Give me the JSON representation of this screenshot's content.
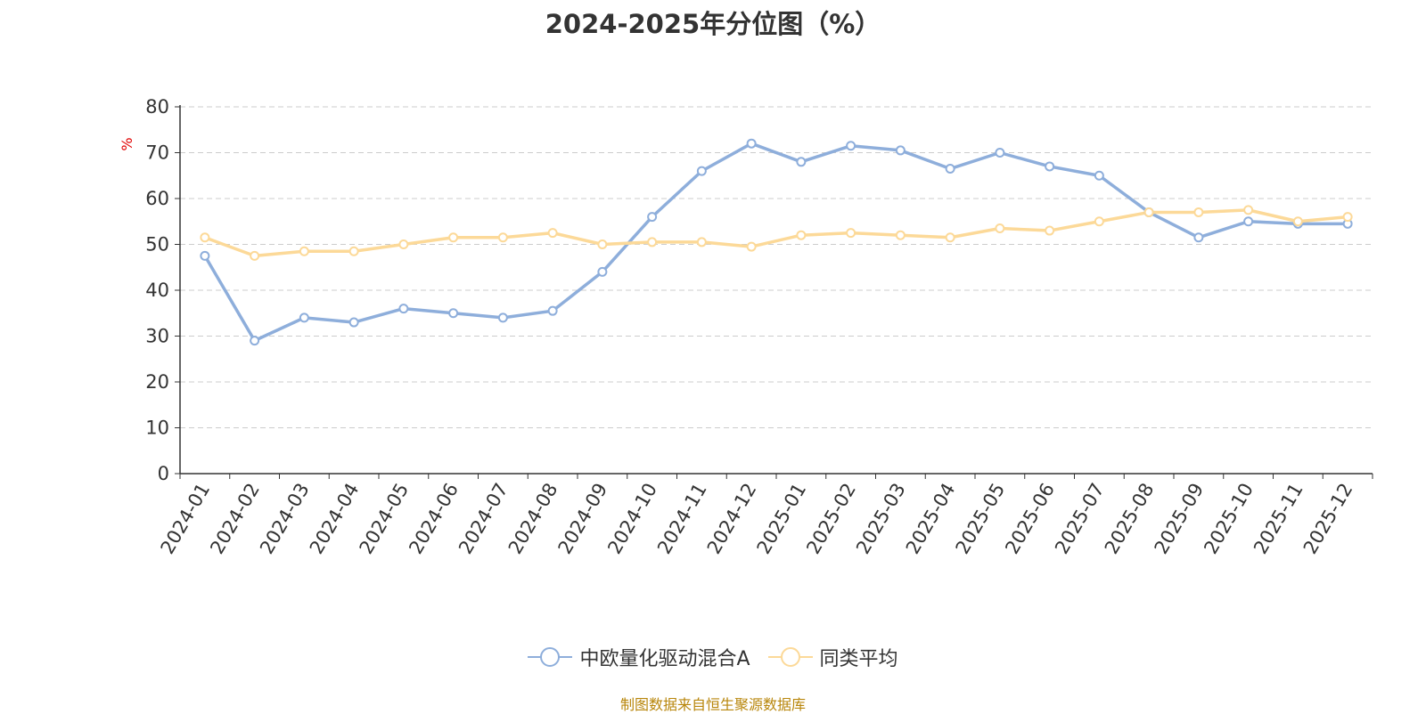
{
  "title": "2024-2025年分位图（%）",
  "source": "制图数据来自恒生聚源数据库",
  "chart_data": {
    "type": "line",
    "title": "2024-2025年分位图（%）",
    "ylabel": "%",
    "ylim": [
      0,
      80
    ],
    "yticks": [
      0,
      10,
      20,
      30,
      40,
      50,
      60,
      70,
      80
    ],
    "grid": true,
    "legend_position": "bottom",
    "categories": [
      "2024-01",
      "2024-02",
      "2024-03",
      "2024-04",
      "2024-05",
      "2024-06",
      "2024-07",
      "2024-08",
      "2024-09",
      "2024-10",
      "2024-11",
      "2024-12",
      "2025-01",
      "2025-02",
      "2025-03",
      "2025-04",
      "2025-05",
      "2025-06",
      "2025-07",
      "2025-08",
      "2025-09",
      "2025-10",
      "2025-11",
      "2025-12"
    ],
    "series": [
      {
        "name": "中欧量化驱动混合A",
        "color": "#8eaedb",
        "values": [
          47.5,
          29.0,
          34.0,
          33.0,
          36.0,
          35.0,
          34.0,
          35.5,
          44.0,
          56.0,
          66.0,
          72.0,
          68.0,
          71.5,
          70.5,
          66.5,
          70.0,
          67.0,
          65.0,
          57.0,
          51.5,
          55.0,
          54.5,
          54.5
        ]
      },
      {
        "name": "同类平均",
        "color": "#fcd998",
        "values": [
          51.5,
          47.5,
          48.5,
          48.5,
          50.0,
          51.5,
          51.5,
          52.5,
          50.0,
          50.5,
          50.5,
          49.5,
          52.0,
          52.5,
          52.0,
          51.5,
          53.5,
          53.0,
          55.0,
          57.0,
          57.0,
          57.5,
          55.0,
          56.0
        ]
      }
    ]
  }
}
